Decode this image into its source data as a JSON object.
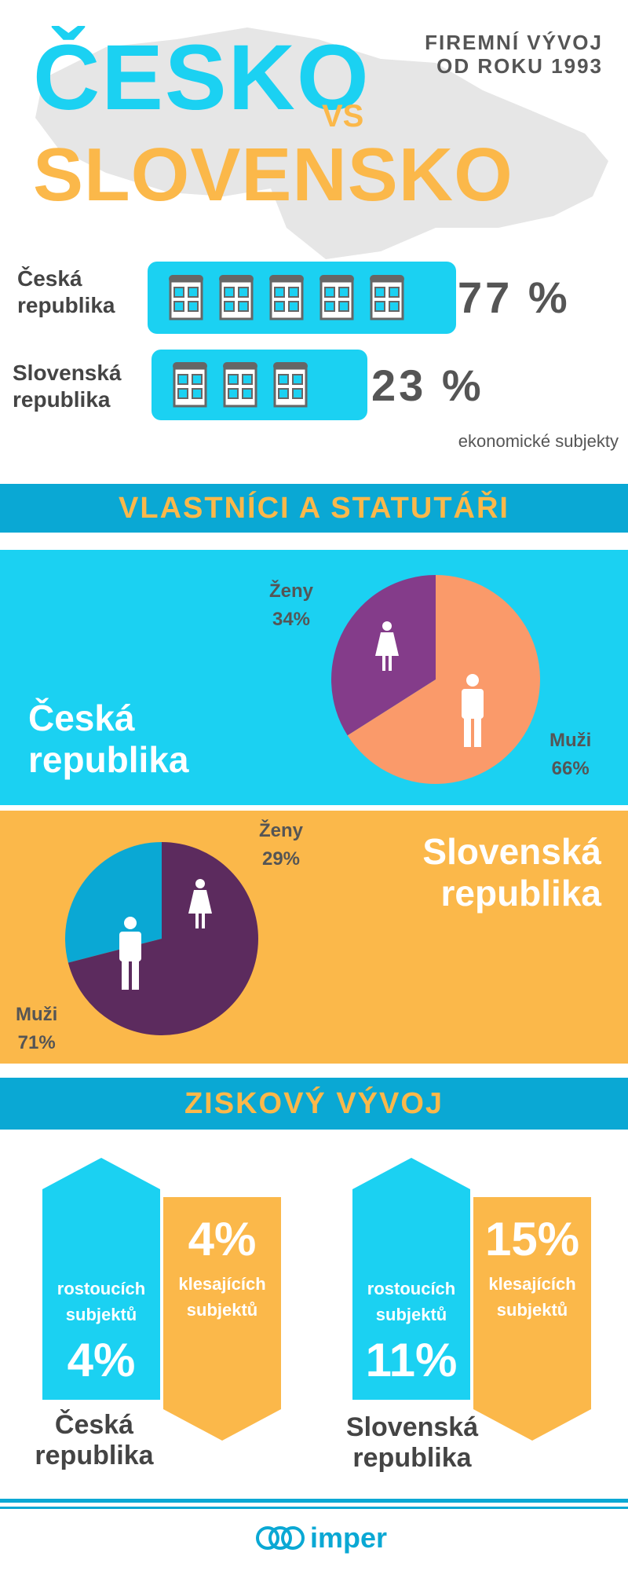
{
  "header": {
    "title_cz": "ČESKO",
    "title_vs": "VS",
    "title_sk": "SLOVENSKO",
    "subtitle_line1": "FIREMNÍ VÝVOJ",
    "subtitle_line2": "OD ROKU 1993"
  },
  "subjects": {
    "cz_label_line1": "Česká",
    "cz_label_line2": "republika",
    "cz_value": "77 %",
    "sk_label_line1": "Slovenská",
    "sk_label_line2": "republika",
    "sk_value": "23 %",
    "note": "ekonomické subjekty"
  },
  "section_owners": {
    "title": "VLASTNÍCI A STATUTÁŘI"
  },
  "section_profit": {
    "title": "ZISKOVÝ VÝVOJ"
  },
  "profit": {
    "cz": {
      "growing_label_line1": "rostoucích",
      "growing_label_line2": "subjektů",
      "growing_value": "4%",
      "declining_value": "4%",
      "declining_label_line1": "klesajících",
      "declining_label_line2": "subjektů",
      "country_line1": "Česká",
      "country_line2": "republika"
    },
    "sk": {
      "growing_label_line1": "rostoucích",
      "growing_label_line2": "subjektů",
      "growing_value": "11%",
      "declining_value": "15%",
      "declining_label_line1": "klesajících",
      "declining_label_line2": "subjektů",
      "country_line1": "Slovenská",
      "country_line2": "republika"
    }
  },
  "footer": {
    "logo_text": "imper"
  },
  "colors": {
    "cyan": "#1bd1f2",
    "blue_band": "#0aa8d4",
    "orange": "#fbb84a",
    "salmon": "#fa9a6a",
    "purple": "#843c8a",
    "dark_purple": "#5c2b5e"
  },
  "chart_data": [
    {
      "type": "bar",
      "categories": [
        "Česká republika",
        "Slovenská republika"
      ],
      "values": [
        77,
        23
      ],
      "units": "%"
    },
    {
      "type": "pie",
      "region_line1": "Česká",
      "region_line2": "republika",
      "slices": [
        {
          "name": "Ženy",
          "value": 34,
          "label": "34%",
          "color": "#843c8a"
        },
        {
          "name": "Muži",
          "value": 66,
          "label": "66%",
          "color": "#fa9a6a"
        }
      ]
    },
    {
      "type": "pie",
      "region_line1": "Slovenská",
      "region_line2": "republika",
      "slices": [
        {
          "name": "Ženy",
          "value": 29,
          "label": "29%",
          "color": "#0aa8d4"
        },
        {
          "name": "Muži",
          "value": 71,
          "label": "71%",
          "color": "#5c2b5e"
        }
      ]
    }
  ]
}
